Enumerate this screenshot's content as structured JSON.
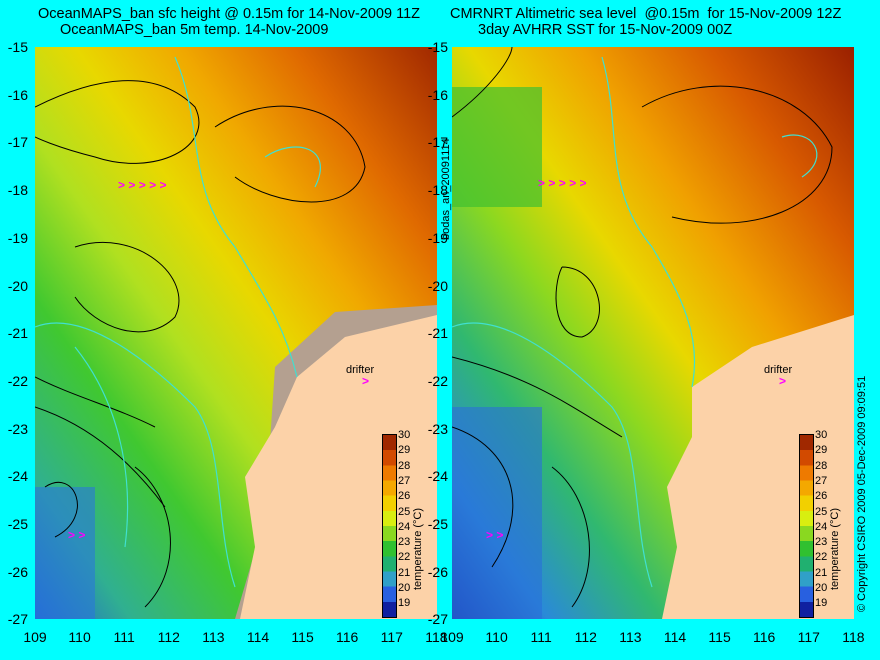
{
  "titles": {
    "left_line1": "OceanMAPS_ban sfc height @ 0.15m for 14-Nov-2009 11Z",
    "left_line2": "OceanMAPS_ban 5m temp. 14-Nov-2009",
    "right_line1": "CMRNRT Altimetric sea level  @0.15m  for 15-Nov-2009 12Z",
    "right_line2": "3day AVHRR SST for 15-Nov-2009 00Z"
  },
  "y_ticks": [
    "-15",
    "-16",
    "-17",
    "-18",
    "-19",
    "-20",
    "-21",
    "-22",
    "-23",
    "-24",
    "-25",
    "-26",
    "-27"
  ],
  "x_ticks": [
    "109",
    "110",
    "111",
    "112",
    "113",
    "114",
    "115",
    "116",
    "117",
    "118"
  ],
  "colorbar": {
    "labels": [
      "30",
      "29",
      "28",
      "27",
      "26",
      "25",
      "24",
      "23",
      "22",
      "21",
      "20",
      "19"
    ],
    "title": "temperature (°C)",
    "colors": [
      "#a02800",
      "#d24a00",
      "#ee7a00",
      "#f4a800",
      "#f2d000",
      "#d8ee10",
      "#8ad820",
      "#30c030",
      "#20b070",
      "#30a0c8",
      "#2860e0",
      "#1020a0"
    ]
  },
  "side_text": {
    "middle": "bodas_an_20091114",
    "right": "© Copyright CSIRO 2009   05-Dec-2009 09:09:51"
  },
  "drifter_label": "drifter",
  "arrow_glyph": ">",
  "colors": {
    "background": "#00ffff",
    "land": "#fcd2a8",
    "model_land": "#b4a090",
    "coast_contour": "#40e0d0",
    "drifter_track": "#ff00ff"
  }
}
